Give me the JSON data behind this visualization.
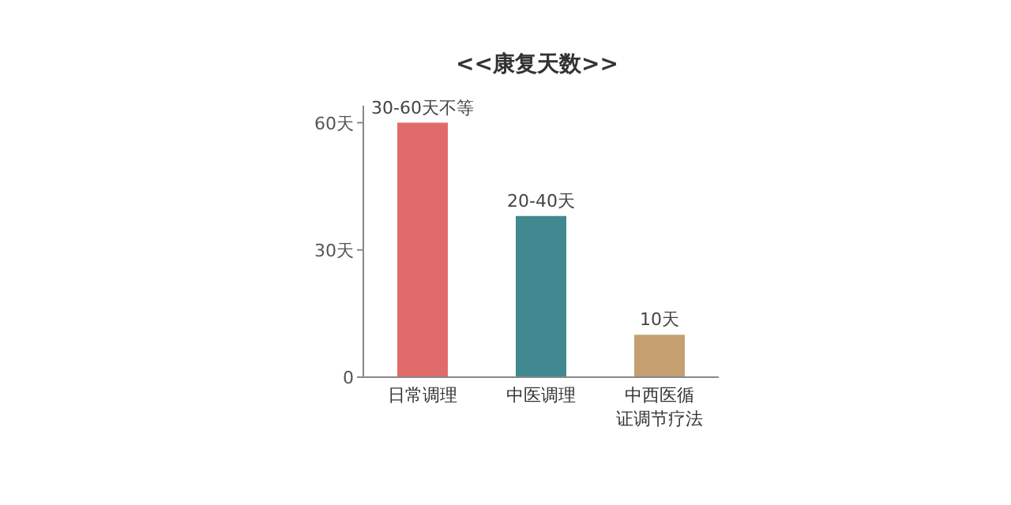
{
  "chart_data": {
    "type": "bar",
    "title": "<<康复天数>>",
    "categories": [
      "日常调理",
      "中医调理",
      "中西医循证调节疗法"
    ],
    "values": [
      60,
      38,
      10
    ],
    "colors": [
      "#e06b6a",
      "#418890",
      "#c4a070"
    ],
    "value_labels": [
      "30-60天不等",
      "20-40天",
      "10天"
    ],
    "ylim": [
      0,
      64
    ],
    "yticks": [
      0,
      {
        "value": 30,
        "label": "30天"
      },
      {
        "value": 60,
        "label": "60天"
      }
    ],
    "grid": false
  }
}
